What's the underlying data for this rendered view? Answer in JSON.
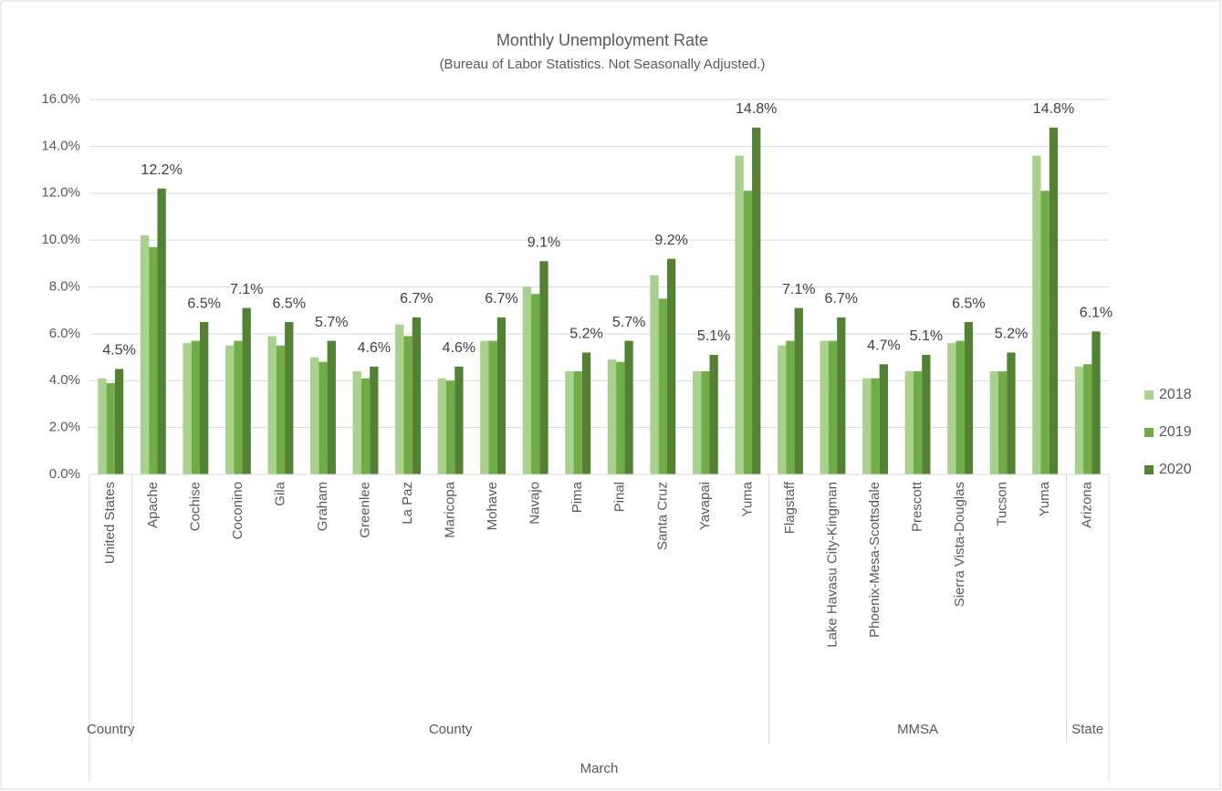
{
  "chart_data": {
    "type": "bar",
    "title": "Monthly Unemployment Rate",
    "subtitle": "(Bureau of Labor Statistics. Not Seasonally Adjusted.)",
    "outer_group": "March",
    "groups": [
      {
        "name": "Country",
        "categories": [
          "United States"
        ]
      },
      {
        "name": "County",
        "categories": [
          "Apache",
          "Cochise",
          "Coconino",
          "Gila",
          "Graham",
          "Greenlee",
          "La Paz",
          "Maricopa",
          "Mohave",
          "Navajo",
          "Pima",
          "Pinal",
          "Santa Cruz",
          "Yavapai",
          "Yuma"
        ]
      },
      {
        "name": "MMSA",
        "categories": [
          "Flagstaff",
          "Lake Havasu City-Kingman",
          "Phoenix-Mesa-Scottsdale",
          "Prescott",
          "Sierra Vista-Douglas",
          "Tucson",
          "Yuma"
        ]
      },
      {
        "name": "State",
        "categories": [
          "Arizona"
        ]
      }
    ],
    "series": [
      {
        "name": "2018",
        "color": "#a9d18e",
        "values": [
          4.1,
          10.2,
          5.6,
          5.5,
          5.9,
          5.0,
          4.4,
          6.4,
          4.1,
          5.7,
          8.0,
          4.4,
          4.9,
          8.5,
          4.4,
          13.6,
          5.5,
          5.7,
          4.1,
          4.4,
          5.6,
          4.4,
          13.6,
          4.6
        ]
      },
      {
        "name": "2019",
        "color": "#70ad47",
        "values": [
          3.9,
          9.7,
          5.7,
          5.7,
          5.5,
          4.8,
          4.1,
          5.9,
          4.0,
          5.7,
          7.7,
          4.4,
          4.8,
          7.5,
          4.4,
          12.1,
          5.7,
          5.7,
          4.1,
          4.4,
          5.7,
          4.4,
          12.1,
          4.7
        ]
      },
      {
        "name": "2020",
        "color": "#548235",
        "values": [
          4.5,
          12.2,
          6.5,
          7.1,
          6.5,
          5.7,
          4.6,
          6.7,
          4.6,
          6.7,
          9.1,
          5.2,
          5.7,
          9.2,
          5.1,
          14.8,
          7.1,
          6.7,
          4.7,
          5.1,
          6.5,
          5.2,
          14.8,
          6.1
        ],
        "value_labels": [
          "4.5%",
          "12.2%",
          "6.5%",
          "7.1%",
          "6.5%",
          "5.7%",
          "4.6%",
          "6.7%",
          "4.6%",
          "6.7%",
          "9.1%",
          "5.2%",
          "5.7%",
          "9.2%",
          "5.1%",
          "14.8%",
          "7.1%",
          "6.7%",
          "4.7%",
          "5.1%",
          "6.5%",
          "5.2%",
          "14.8%",
          "6.1%"
        ]
      }
    ],
    "ylim": [
      0,
      16
    ],
    "yticks": [
      {
        "value": 0,
        "label": "0.0%"
      },
      {
        "value": 2,
        "label": "2.0%"
      },
      {
        "value": 4,
        "label": "4.0%"
      },
      {
        "value": 6,
        "label": "6.0%"
      },
      {
        "value": 8,
        "label": "8.0%"
      },
      {
        "value": 10,
        "label": "10.0%"
      },
      {
        "value": 12,
        "label": "12.0%"
      },
      {
        "value": 14,
        "label": "14.0%"
      },
      {
        "value": 16,
        "label": "16.0%"
      }
    ],
    "grid": true,
    "legend": "right"
  }
}
